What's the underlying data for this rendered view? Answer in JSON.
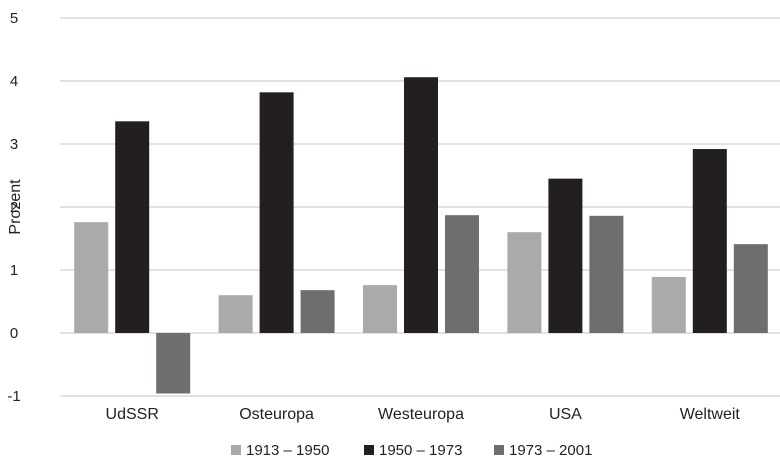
{
  "chart_data": {
    "type": "bar",
    "title": "",
    "xlabel": "",
    "ylabel": "Prozent",
    "ylim": [
      -1,
      5
    ],
    "yticks": [
      "5",
      "4",
      "3",
      "2",
      "1",
      "0",
      "-1"
    ],
    "grid": true,
    "legend_position": "bottom",
    "categories": [
      "UdSSR",
      "Osteuropa",
      "Westeuropa",
      "USA",
      "Weltweit"
    ],
    "series": [
      {
        "name": "1913 – 1950",
        "color": "#aaaaaa",
        "values": [
          1.76,
          0.6,
          0.76,
          1.6,
          0.89
        ]
      },
      {
        "name": "1950 – 1973",
        "color": "#231f20",
        "values": [
          3.36,
          3.82,
          4.06,
          2.45,
          2.92
        ]
      },
      {
        "name": "1973 – 2001",
        "color": "#6d6e70",
        "values": [
          -0.96,
          0.68,
          1.87,
          1.86,
          1.41
        ]
      }
    ]
  }
}
